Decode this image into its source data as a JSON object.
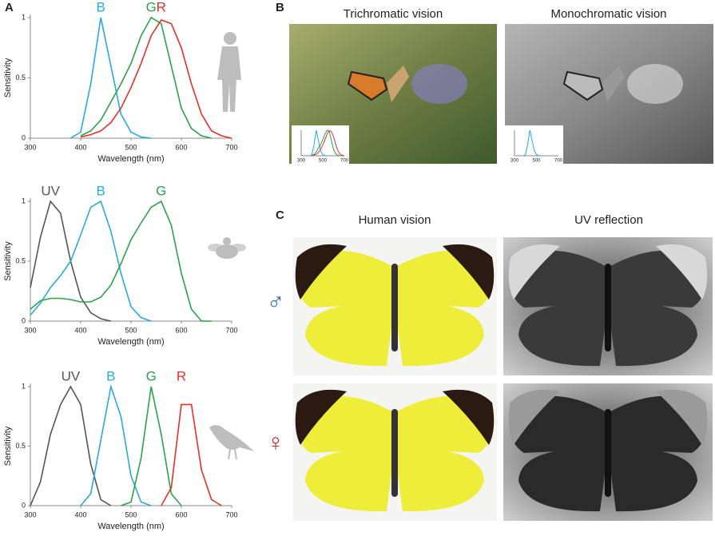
{
  "chart_data": [
    {
      "type": "line",
      "panel": "A",
      "xlabel": "Wavelength (nm)",
      "ylabel": "Sensitivity",
      "x": [
        300,
        320,
        340,
        360,
        380,
        400,
        420,
        440,
        460,
        480,
        500,
        520,
        540,
        560,
        580,
        600,
        620,
        640,
        660,
        680,
        700
      ],
      "xlim": [
        300,
        700
      ],
      "xticks": [
        300,
        400,
        500,
        600,
        700
      ],
      "ylim": [
        0,
        1
      ],
      "yticks": [
        0,
        0.5,
        1
      ],
      "series": [
        {
          "name": "B",
          "color": "#29a9e0",
          "values": [
            null,
            null,
            null,
            null,
            0,
            0.05,
            0.45,
            1.0,
            0.6,
            0.2,
            0.05,
            0.01,
            0,
            null,
            null,
            null,
            null,
            null,
            null,
            null,
            null
          ]
        },
        {
          "name": "G",
          "color": "#2aa24a",
          "values": [
            null,
            null,
            null,
            null,
            null,
            0.02,
            0.06,
            0.15,
            0.3,
            0.45,
            0.62,
            0.85,
            1.0,
            0.95,
            0.6,
            0.25,
            0.08,
            0.02,
            0,
            null,
            null
          ]
        },
        {
          "name": "R",
          "color": "#e0312a",
          "values": [
            null,
            null,
            null,
            null,
            null,
            0.01,
            0.03,
            0.06,
            0.13,
            0.25,
            0.42,
            0.62,
            0.85,
            0.98,
            0.95,
            0.75,
            0.45,
            0.2,
            0.06,
            0.02,
            0
          ]
        }
      ]
    },
    {
      "type": "line",
      "xlabel": "Wavelength (nm)",
      "ylabel": "Sensitivity",
      "x": [
        300,
        320,
        340,
        360,
        380,
        400,
        420,
        440,
        460,
        480,
        500,
        520,
        540,
        560,
        580,
        600,
        620,
        640,
        660,
        680,
        700
      ],
      "xlim": [
        300,
        700
      ],
      "xticks": [
        300,
        400,
        500,
        600,
        700
      ],
      "ylim": [
        0,
        1
      ],
      "yticks": [
        0,
        0.5,
        1
      ],
      "series": [
        {
          "name": "UV",
          "color": "#555555",
          "values": [
            0.28,
            0.7,
            1.0,
            0.9,
            0.5,
            0.2,
            0.07,
            0.02,
            0,
            null,
            null,
            null,
            null,
            null,
            null,
            null,
            null,
            null,
            null,
            null,
            null
          ]
        },
        {
          "name": "B",
          "color": "#29a9e0",
          "values": [
            0.05,
            0.15,
            0.28,
            0.38,
            0.5,
            0.72,
            0.95,
            1.0,
            0.75,
            0.4,
            0.12,
            0.03,
            0,
            null,
            null,
            null,
            null,
            null,
            null,
            null,
            null
          ]
        },
        {
          "name": "G",
          "color": "#2aa24a",
          "values": [
            0.1,
            0.17,
            0.19,
            0.19,
            0.18,
            0.16,
            0.16,
            0.2,
            0.3,
            0.48,
            0.68,
            0.82,
            0.95,
            1.0,
            0.8,
            0.4,
            0.1,
            0,
            0,
            null,
            null
          ]
        }
      ]
    },
    {
      "type": "line",
      "xlabel": "Wavelength (nm)",
      "ylabel": "Sensitivity",
      "x": [
        300,
        320,
        340,
        360,
        380,
        400,
        420,
        440,
        460,
        480,
        500,
        520,
        540,
        560,
        580,
        600,
        620,
        640,
        660,
        680,
        700
      ],
      "xlim": [
        300,
        700
      ],
      "xticks": [
        300,
        400,
        500,
        600,
        700
      ],
      "ylim": [
        0,
        1
      ],
      "yticks": [
        0,
        0.5,
        1
      ],
      "series": [
        {
          "name": "UV",
          "color": "#555555",
          "values": [
            0,
            0.2,
            0.6,
            0.85,
            1.0,
            0.85,
            0.35,
            0.05,
            0,
            null,
            null,
            null,
            null,
            null,
            null,
            null,
            null,
            null,
            null,
            null,
            null
          ]
        },
        {
          "name": "B",
          "color": "#29a9e0",
          "values": [
            null,
            null,
            null,
            null,
            null,
            0,
            0.1,
            0.55,
            1.0,
            0.75,
            0.25,
            0.03,
            0,
            null,
            null,
            null,
            null,
            null,
            null,
            null,
            null
          ]
        },
        {
          "name": "G",
          "color": "#2aa24a",
          "values": [
            null,
            null,
            null,
            null,
            null,
            null,
            null,
            null,
            null,
            0,
            0.03,
            0.4,
            1.0,
            0.6,
            0.1,
            0,
            null,
            null,
            null,
            null,
            null
          ]
        },
        {
          "name": "R",
          "color": "#e0312a",
          "values": [
            null,
            null,
            null,
            null,
            null,
            null,
            null,
            null,
            null,
            null,
            null,
            null,
            null,
            0,
            0.15,
            0.85,
            0.85,
            0.3,
            0.05,
            0,
            null
          ]
        }
      ]
    }
  ],
  "panel_b": {
    "label": "B",
    "left_title": "Trichromatic vision",
    "right_title": "Monochromatic vision",
    "inset_xticks": [
      300,
      500,
      700
    ]
  },
  "panel_c": {
    "label": "C",
    "left_title": "Human vision",
    "right_title": "UV reflection",
    "male": "♂",
    "female": "♀"
  }
}
